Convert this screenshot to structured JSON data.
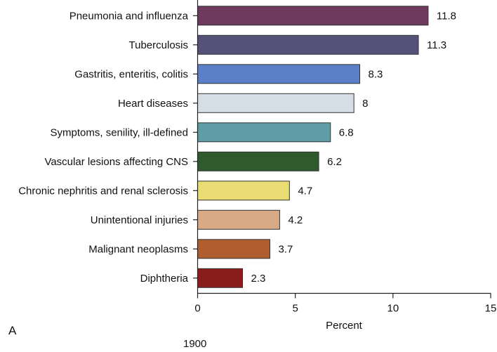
{
  "chart_data": {
    "type": "bar",
    "orientation": "horizontal",
    "title": "",
    "panel_label": "A",
    "caption": "1900",
    "xlabel": "Percent",
    "ylabel": "",
    "xlim": [
      0,
      15
    ],
    "xticks": [
      0,
      5,
      10,
      15
    ],
    "grid": false,
    "categories": [
      "Pneumonia and influenza",
      "Tuberculosis",
      "Gastritis, enteritis, colitis",
      "Heart diseases",
      "Symptoms, senility, ill-defined",
      "Vascular lesions affecting CNS",
      "Chronic nephritis and renal sclerosis",
      "Unintentional injuries",
      "Malignant neoplasms",
      "Diphtheria"
    ],
    "values": [
      11.8,
      11.3,
      8.3,
      8,
      6.8,
      6.2,
      4.7,
      4.2,
      3.7,
      2.3
    ],
    "value_labels": [
      "11.8",
      "11.3",
      "8.3",
      "8",
      "6.8",
      "6.2",
      "4.7",
      "4.2",
      "3.7",
      "2.3"
    ],
    "colors": [
      "#6e3a5e",
      "#555279",
      "#5b80c8",
      "#d5dee6",
      "#5f9ea6",
      "#2f5a2c",
      "#e8dc72",
      "#d8aa86",
      "#b05e30",
      "#8b1c1c"
    ]
  }
}
